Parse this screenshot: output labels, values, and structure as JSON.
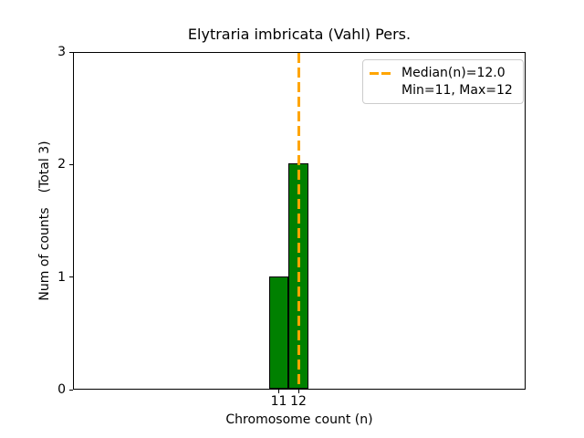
{
  "chart_data": {
    "type": "bar",
    "title": "Elytraria imbricata (Vahl) Pers.",
    "xlabel": "Chromosome count (n)",
    "ylabel": "Num of counts",
    "ylabel_annotation": "(Total 3)",
    "categories": [
      11,
      12
    ],
    "values": [
      1,
      2
    ],
    "total_counts": 3,
    "median_n": 12.0,
    "min_n": 11,
    "max_n": 12,
    "xticks": [
      11,
      12
    ],
    "yticks": [
      0,
      1,
      2,
      3
    ],
    "ylim": [
      0,
      3
    ],
    "grid": false,
    "legend": {
      "position": "upper right",
      "entries": [
        "Median(n)=12.0",
        "Min=11, Max=12"
      ]
    },
    "colors": {
      "bar_fill": "#008000",
      "bar_edge": "#000000",
      "median_line": "#FFA500",
      "spine": "#000000",
      "legend_border": "#cccccc"
    },
    "median_line_style": "dashed"
  }
}
